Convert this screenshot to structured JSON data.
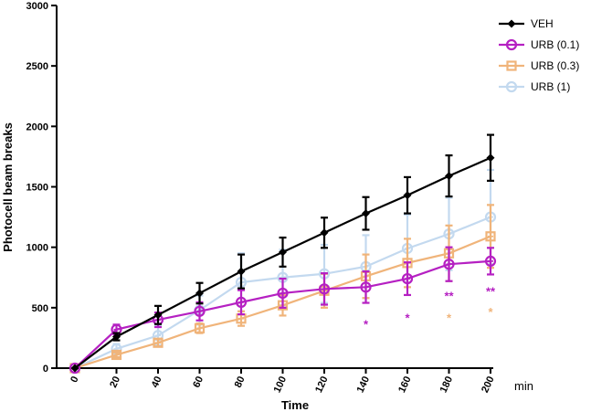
{
  "chart_data": {
    "type": "line",
    "title": "",
    "xlabel": "Time",
    "xunit": "min",
    "ylabel": "Photocell beam breaks",
    "ylim": [
      0,
      3000
    ],
    "yticks": [
      0,
      500,
      1000,
      1500,
      2000,
      2500,
      3000
    ],
    "x": [
      0,
      20,
      40,
      60,
      80,
      100,
      120,
      140,
      160,
      180,
      200
    ],
    "grid": false,
    "legend_position": "top-right",
    "series": [
      {
        "name": "VEH",
        "color": "#000000",
        "marker": "diamond",
        "values": [
          0,
          260,
          440,
          620,
          800,
          960,
          1120,
          1280,
          1430,
          1590,
          1740
        ],
        "errors": [
          0,
          30,
          75,
          85,
          140,
          120,
          125,
          135,
          150,
          170,
          190
        ]
      },
      {
        "name": "URB (0.1)",
        "color": "#b520c2",
        "marker": "circle",
        "values": [
          0,
          320,
          400,
          470,
          545,
          620,
          655,
          670,
          740,
          860,
          885
        ],
        "errors": [
          0,
          40,
          60,
          75,
          100,
          120,
          130,
          130,
          135,
          140,
          110
        ]
      },
      {
        "name": "URB (0.3)",
        "color": "#f0b47a",
        "marker": "square",
        "values": [
          0,
          110,
          210,
          330,
          410,
          520,
          640,
          760,
          870,
          950,
          1090
        ],
        "errors": [
          0,
          20,
          30,
          40,
          60,
          85,
          140,
          180,
          200,
          230,
          260
        ]
      },
      {
        "name": "URB (1)",
        "color": "#c3d9ef",
        "marker": "circle",
        "values": [
          0,
          160,
          270,
          480,
          710,
          750,
          780,
          840,
          990,
          1110,
          1250
        ],
        "errors": [
          0,
          40,
          80,
          120,
          240,
          230,
          240,
          260,
          280,
          300,
          390
        ]
      }
    ],
    "annotations": [
      {
        "x": 140,
        "y": 365,
        "text": "*",
        "color": "#b520c2"
      },
      {
        "x": 160,
        "y": 420,
        "text": "*",
        "color": "#b520c2"
      },
      {
        "x": 180,
        "y": 600,
        "text": "**",
        "color": "#b520c2"
      },
      {
        "x": 200,
        "y": 640,
        "text": "**",
        "color": "#b520c2"
      },
      {
        "x": 180,
        "y": 420,
        "text": "*",
        "color": "#f0b47a"
      },
      {
        "x": 200,
        "y": 470,
        "text": "*",
        "color": "#f0b47a"
      }
    ]
  }
}
